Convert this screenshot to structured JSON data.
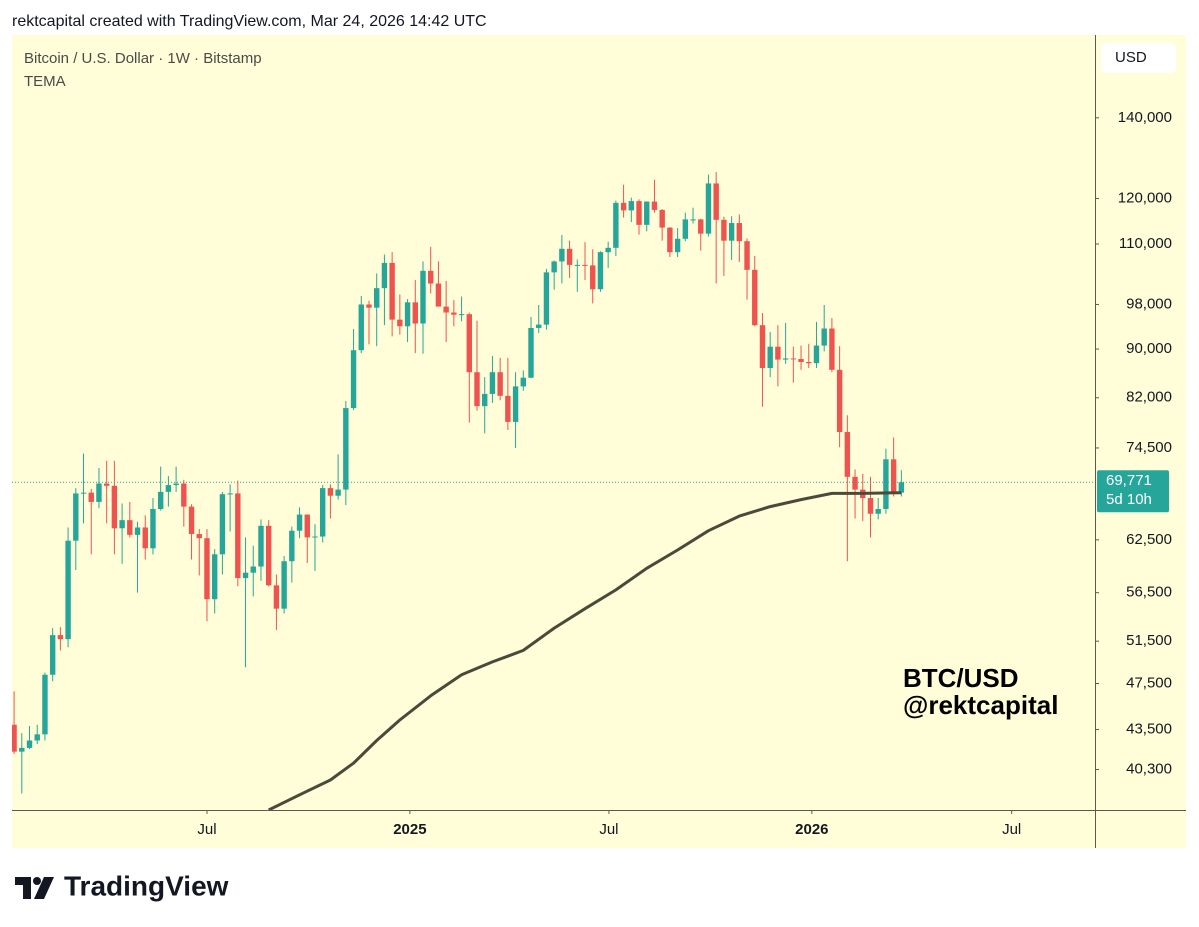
{
  "header": {
    "credit": "rektcapital created with TradingView.com, Mar 24, 2026 14:42 UTC"
  },
  "footer": {
    "logo": "TradingView"
  },
  "chart_data": {
    "type": "candlestick",
    "title": "Bitcoin / U.S. Dollar · 1W · Bitstamp",
    "currency": "USD",
    "annotation": [
      "BTC/USD",
      "@rektcapital"
    ],
    "up_color": "#26a69a",
    "down_color": "#ef5350",
    "log_scale": true,
    "x": [
      1,
      2,
      3,
      4,
      5,
      6,
      7,
      8,
      9,
      10,
      11,
      12,
      13,
      14,
      15,
      16,
      17,
      18,
      19,
      20,
      21,
      22,
      23,
      24,
      25,
      26,
      27,
      28,
      29,
      30,
      31,
      32,
      33,
      34,
      35,
      36,
      37,
      38,
      39,
      40,
      41,
      42,
      43,
      44,
      45,
      46,
      47,
      48,
      49,
      50,
      51,
      52,
      53,
      54,
      55,
      56,
      57,
      58,
      59,
      60,
      61,
      62,
      63,
      64,
      65,
      66,
      67,
      68,
      69,
      70,
      71,
      72,
      73,
      74,
      75,
      76,
      77,
      78,
      79,
      80,
      81,
      82,
      83,
      84,
      85,
      86,
      87,
      88,
      89,
      90,
      91,
      92,
      93,
      94,
      95,
      96,
      97,
      98,
      99,
      100,
      101,
      102,
      103,
      104,
      105,
      106,
      107,
      108,
      109,
      110,
      111,
      112,
      113,
      114,
      115,
      116
    ],
    "open": [
      43900,
      41700,
      42000,
      42600,
      43100,
      48300,
      52100,
      51700,
      62400,
      68300,
      68400,
      67200,
      69600,
      69300,
      63900,
      64900,
      63100,
      64000,
      61500,
      66300,
      68500,
      69400,
      69600,
      66600,
      63200,
      62700,
      55800,
      60800,
      68200,
      68300,
      58100,
      58700,
      59400,
      64200,
      57300,
      54800,
      60000,
      63600,
      65600,
      62800,
      62900,
      69000,
      68000,
      68800,
      80400,
      89800,
      98000,
      97400,
      101100,
      106100,
      95200,
      94000,
      98400,
      94500,
      104500,
      102000,
      97600,
      96500,
      96100,
      96200,
      86100,
      80700,
      82600,
      86100,
      82300,
      78300,
      83800,
      85200,
      93700,
      94300,
      104200,
      106400,
      109000,
      105700,
      105700,
      105600,
      100900,
      108300,
      109200,
      119000,
      117300,
      119400,
      114100,
      119300,
      117400,
      113500,
      108300,
      111100,
      115300,
      115300,
      112200,
      123500,
      115200,
      110700,
      114500,
      110600,
      104700,
      94200,
      86800,
      90400,
      88200,
      88400,
      88300,
      87800,
      87600,
      90600,
      93600,
      86500,
      76800,
      70500,
      68800,
      67700,
      65700,
      66300,
      72900,
      68400
    ],
    "high": [
      46800,
      43200,
      43800,
      43900,
      48500,
      52800,
      52900,
      64000,
      69000,
      73700,
      68900,
      71700,
      72700,
      72700,
      67000,
      67200,
      64700,
      65500,
      67700,
      71900,
      70600,
      71900,
      70100,
      66900,
      63800,
      63800,
      61400,
      68500,
      69500,
      70000,
      62800,
      61800,
      65000,
      64900,
      58500,
      60600,
      64100,
      66500,
      65600,
      64400,
      69400,
      69500,
      73600,
      81500,
      93500,
      99600,
      98700,
      104000,
      107800,
      108300,
      99900,
      99000,
      102700,
      106400,
      109400,
      106400,
      102500,
      98800,
      99500,
      96500,
      95000,
      85300,
      88800,
      88500,
      88500,
      86100,
      86400,
      95700,
      97900,
      104900,
      106600,
      111900,
      110700,
      106800,
      110400,
      108900,
      108500,
      110500,
      119500,
      123200,
      120200,
      119800,
      119300,
      124400,
      117600,
      113600,
      113400,
      116800,
      117900,
      115400,
      125600,
      126200,
      115900,
      116000,
      116400,
      111200,
      107500,
      96400,
      93000,
      94200,
      94600,
      90400,
      90600,
      90900,
      94800,
      97900,
      95500,
      90500,
      79300,
      71500,
      70900,
      70500,
      67700,
      74400,
      76000,
      71400
    ],
    "low": [
      41500,
      38500,
      41900,
      42300,
      42600,
      47700,
      50600,
      50900,
      59000,
      64500,
      60800,
      66400,
      64500,
      60800,
      59700,
      62800,
      56500,
      60200,
      60800,
      66100,
      66600,
      68500,
      64100,
      60200,
      58400,
      53500,
      54300,
      58500,
      63500,
      57200,
      49000,
      56100,
      57800,
      57200,
      52600,
      54300,
      57600,
      62700,
      59800,
      58900,
      62200,
      65100,
      67500,
      66800,
      80100,
      89300,
      90800,
      90500,
      94200,
      92200,
      92500,
      91200,
      89300,
      89200,
      100100,
      97800,
      91200,
      94000,
      94900,
      78200,
      80000,
      76600,
      81200,
      81600,
      77100,
      74500,
      83100,
      85100,
      92800,
      93400,
      100800,
      102000,
      103100,
      100400,
      102700,
      98200,
      100400,
      105100,
      107500,
      115700,
      114700,
      112000,
      112700,
      116800,
      110700,
      107300,
      107300,
      110600,
      114400,
      108600,
      111600,
      102000,
      103500,
      106700,
      106300,
      98900,
      94000,
      80600,
      85300,
      83800,
      87500,
      84400,
      86500,
      86800,
      86800,
      89600,
      86100,
      74600,
      60000,
      65100,
      64800,
      62800,
      65000,
      65700,
      67900,
      67900
    ],
    "close": [
      41700,
      42000,
      42600,
      43100,
      48300,
      52100,
      51700,
      62400,
      68300,
      68400,
      67200,
      69600,
      69300,
      63900,
      64900,
      63100,
      64000,
      61500,
      66300,
      68500,
      69400,
      69600,
      66600,
      63200,
      62700,
      55800,
      60800,
      68200,
      68300,
      58100,
      58700,
      59400,
      64200,
      57300,
      54800,
      60000,
      63600,
      65600,
      62800,
      62900,
      69000,
      68000,
      68800,
      80400,
      89800,
      98000,
      97400,
      101100,
      106100,
      95200,
      94000,
      98400,
      94500,
      104500,
      102000,
      97600,
      96500,
      96100,
      96200,
      86100,
      80700,
      82600,
      86100,
      82300,
      78300,
      83800,
      85200,
      93700,
      94300,
      104200,
      106400,
      109000,
      105700,
      105700,
      105600,
      100900,
      108300,
      109200,
      119000,
      117300,
      119400,
      114100,
      119300,
      117400,
      113500,
      108300,
      111100,
      115300,
      115300,
      112200,
      123500,
      115200,
      110700,
      114500,
      110600,
      104700,
      94200,
      86800,
      90400,
      88200,
      88400,
      88300,
      87800,
      87600,
      90600,
      93600,
      86500,
      76800,
      70500,
      68800,
      67700,
      65700,
      66300,
      72900,
      68400,
      69771
    ],
    "lines": [
      {
        "name": "TEMA",
        "color": "#4a4a3c",
        "x": [
          34,
          38,
          42,
          45,
          48,
          51,
          55,
          59,
          63,
          67,
          71,
          75,
          79,
          83,
          87,
          91,
          95,
          99,
          103,
          107,
          111,
          116
        ],
        "values": [
          37300,
          38400,
          39500,
          40800,
          42600,
          44300,
          46400,
          48300,
          49500,
          50600,
          52800,
          54800,
          56800,
          59200,
          61300,
          63600,
          65400,
          66600,
          67500,
          68300,
          68300,
          68400
        ]
      }
    ],
    "last_price": {
      "value": 69771,
      "label": "69,771"
    },
    "countdown": "5d 10h",
    "xlim": [
      0.73,
      141.1
    ],
    "xticks": [
      {
        "value": 26,
        "label": "Jul"
      },
      {
        "value": 52.3,
        "label": "2025"
      },
      {
        "value": 78.1,
        "label": "Jul"
      },
      {
        "value": 104.4,
        "label": "2026"
      },
      {
        "value": 130.3,
        "label": "Jul"
      }
    ],
    "ylim": [
      37300,
      164000
    ],
    "yticks": [
      {
        "value": 40300,
        "label": "40,300"
      },
      {
        "value": 43500,
        "label": "43,500"
      },
      {
        "value": 47500,
        "label": "47,500"
      },
      {
        "value": 51500,
        "label": "51,500"
      },
      {
        "value": 56500,
        "label": "56,500"
      },
      {
        "value": 62500,
        "label": "62,500"
      },
      {
        "value": 74500,
        "label": "74,500"
      },
      {
        "value": 82000,
        "label": "82,000"
      },
      {
        "value": 90000,
        "label": "90,000"
      },
      {
        "value": 98000,
        "label": "98,000"
      },
      {
        "value": 110000,
        "label": "110,000"
      },
      {
        "value": 120000,
        "label": "120,000"
      },
      {
        "value": 140000,
        "label": "140,000"
      }
    ]
  }
}
